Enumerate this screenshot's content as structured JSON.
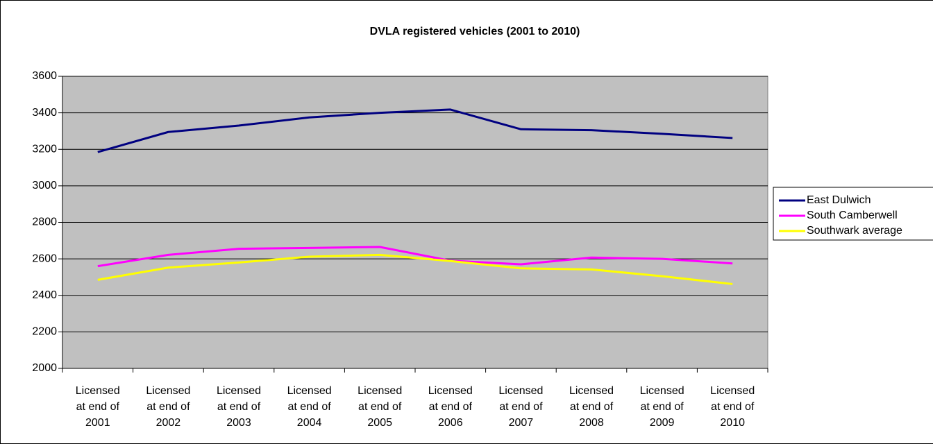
{
  "chart_data": {
    "type": "line",
    "title": "DVLA registered vehicles (2001 to 2010)",
    "categories": [
      "Licensed at end of 2001",
      "Licensed at end of 2002",
      "Licensed at end of 2003",
      "Licensed at end of 2004",
      "Licensed at end of 2005",
      "Licensed at end of 2006",
      "Licensed at end of 2007",
      "Licensed at end of 2008",
      "Licensed at end of 2009",
      "Licensed at end of 2010"
    ],
    "series": [
      {
        "name": "East Dulwich",
        "color": "#000080",
        "values": [
          3185,
          3295,
          3330,
          3375,
          3400,
          3418,
          3310,
          3305,
          3285,
          3262
        ]
      },
      {
        "name": "South Camberwell",
        "color": "#ff00ff",
        "values": [
          2560,
          2622,
          2655,
          2660,
          2665,
          2590,
          2570,
          2607,
          2600,
          2575
        ]
      },
      {
        "name": "Southwark average",
        "color": "#ffff00",
        "values": [
          2485,
          2552,
          2580,
          2612,
          2622,
          2588,
          2548,
          2542,
          2505,
          2462
        ]
      }
    ],
    "ylim": [
      2000,
      3600
    ],
    "yticks": [
      2000,
      2200,
      2400,
      2600,
      2800,
      3000,
      3200,
      3400,
      3600
    ],
    "grid": true,
    "legend": "right"
  }
}
